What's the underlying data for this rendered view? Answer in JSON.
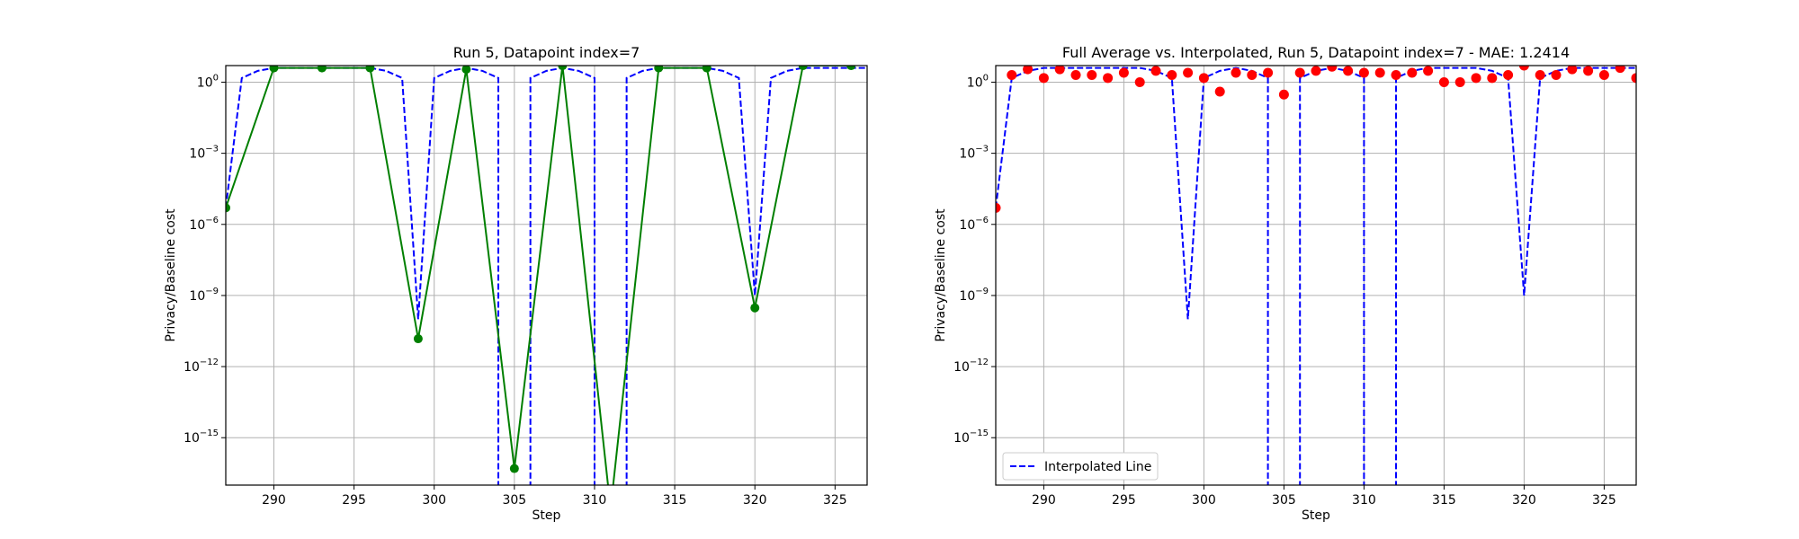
{
  "figure": {
    "background": "#ffffff"
  },
  "chart_data": [
    {
      "type": "line",
      "title": "Run 5, Datapoint index=7",
      "xlabel": "Step",
      "ylabel": "Privacy/Baseline cost",
      "xlim": [
        287,
        327
      ],
      "ylim_log10": [
        -17,
        0.7
      ],
      "yscale": "log",
      "grid": true,
      "legend": null,
      "x_ticks": [
        290,
        295,
        300,
        305,
        310,
        315,
        320,
        325
      ],
      "x_tick_labels": [
        "290",
        "295",
        "300",
        "305",
        "310",
        "315",
        "320",
        "325"
      ],
      "y_ticks_exp": [
        0,
        -3,
        -6,
        -9,
        -12,
        -15
      ],
      "y_tick_labels": [
        {
          "base": "10",
          "exp": "0"
        },
        {
          "base": "10",
          "exp": "−3"
        },
        {
          "base": "10",
          "exp": "−6"
        },
        {
          "base": "10",
          "exp": "−9"
        },
        {
          "base": "10",
          "exp": "−12"
        },
        {
          "base": "10",
          "exp": "−15"
        }
      ],
      "series": [
        {
          "style": "dashed",
          "color": "#0000ff",
          "x": [
            287,
            288,
            289,
            290,
            291,
            292,
            293,
            294,
            295,
            296,
            297,
            298,
            299,
            300,
            301,
            302,
            303,
            304,
            304,
            306,
            306,
            307,
            308,
            309,
            310,
            310,
            312,
            312,
            313,
            314,
            315,
            316,
            317,
            318,
            319,
            320,
            321,
            322,
            323,
            324,
            325,
            326,
            327
          ],
          "y": [
            5e-06,
            1.5,
            3,
            4,
            4,
            4,
            4,
            4,
            4,
            4,
            3,
            1.5,
            1e-10,
            1.5,
            3,
            4,
            3,
            1.5,
            1e-30,
            1e-30,
            1.5,
            3,
            4,
            3,
            1.5,
            1e-30,
            1e-30,
            1.5,
            3,
            4,
            4,
            4,
            4,
            3,
            1.5,
            1e-09,
            1.5,
            3,
            4,
            4,
            4,
            4,
            4
          ]
        },
        {
          "style": "solid-markers",
          "color": "#007f00",
          "x": [
            287,
            290,
            293,
            296,
            299,
            302,
            305,
            308,
            311,
            314,
            317,
            320,
            323,
            326
          ],
          "y": [
            5e-06,
            4,
            4,
            4,
            1.5e-11,
            3.5,
            5e-17,
            5,
            1e-18,
            4,
            4,
            3e-10,
            5,
            5
          ]
        }
      ]
    },
    {
      "type": "line",
      "title": "Full Average vs. Interpolated, Run 5, Datapoint index=7 - MAE: 1.2414",
      "xlabel": "Step",
      "ylabel": "Privacy/Baseline cost",
      "xlim": [
        287,
        327
      ],
      "ylim_log10": [
        -17,
        0.7
      ],
      "yscale": "log",
      "grid": true,
      "legend": "lower left",
      "x_ticks": [
        290,
        295,
        300,
        305,
        310,
        315,
        320,
        325
      ],
      "x_tick_labels": [
        "290",
        "295",
        "300",
        "305",
        "310",
        "315",
        "320",
        "325"
      ],
      "y_ticks_exp": [
        0,
        -3,
        -6,
        -9,
        -12,
        -15
      ],
      "y_tick_labels": [
        {
          "base": "10",
          "exp": "0"
        },
        {
          "base": "10",
          "exp": "−3"
        },
        {
          "base": "10",
          "exp": "−6"
        },
        {
          "base": "10",
          "exp": "−9"
        },
        {
          "base": "10",
          "exp": "−12"
        },
        {
          "base": "10",
          "exp": "−15"
        }
      ],
      "series": [
        {
          "name": "Interpolated Line",
          "style": "dashed",
          "color": "#0000ff",
          "x": [
            287,
            288,
            289,
            290,
            291,
            292,
            293,
            294,
            295,
            296,
            297,
            298,
            299,
            300,
            301,
            302,
            303,
            304,
            304,
            306,
            306,
            307,
            308,
            309,
            310,
            310,
            312,
            312,
            313,
            314,
            315,
            316,
            317,
            318,
            319,
            320,
            321,
            322,
            323,
            324,
            325,
            326,
            327
          ],
          "y": [
            5e-06,
            1.5,
            3,
            4,
            4,
            4,
            4,
            4,
            4,
            4,
            3,
            1.5,
            1e-10,
            1.5,
            3,
            4,
            3,
            1.5,
            1e-30,
            1e-30,
            1.5,
            3,
            4,
            3,
            1.5,
            1e-30,
            1e-30,
            1.5,
            3,
            4,
            4,
            4,
            4,
            3,
            1.5,
            1e-09,
            1.5,
            3,
            4,
            4,
            4,
            4,
            4
          ]
        },
        {
          "style": "points",
          "color": "#ff0000",
          "x": [
            287,
            288,
            289,
            290,
            291,
            292,
            293,
            294,
            295,
            296,
            297,
            298,
            299,
            300,
            301,
            302,
            303,
            304,
            305,
            306,
            307,
            308,
            309,
            310,
            311,
            312,
            313,
            314,
            315,
            316,
            317,
            318,
            319,
            320,
            321,
            322,
            323,
            324,
            325,
            326,
            327
          ],
          "y": [
            5e-06,
            2,
            3.5,
            1.5,
            3.5,
            2,
            2,
            1.5,
            2.5,
            1,
            3,
            2,
            2.5,
            1.5,
            0.4,
            2.5,
            2,
            2.5,
            0.3,
            2.5,
            3,
            4.5,
            3,
            2.5,
            2.5,
            2,
            2.5,
            3,
            1,
            1,
            1.5,
            1.5,
            2,
            5,
            2,
            2,
            3.5,
            3,
            2,
            4,
            1.5
          ]
        }
      ]
    }
  ]
}
